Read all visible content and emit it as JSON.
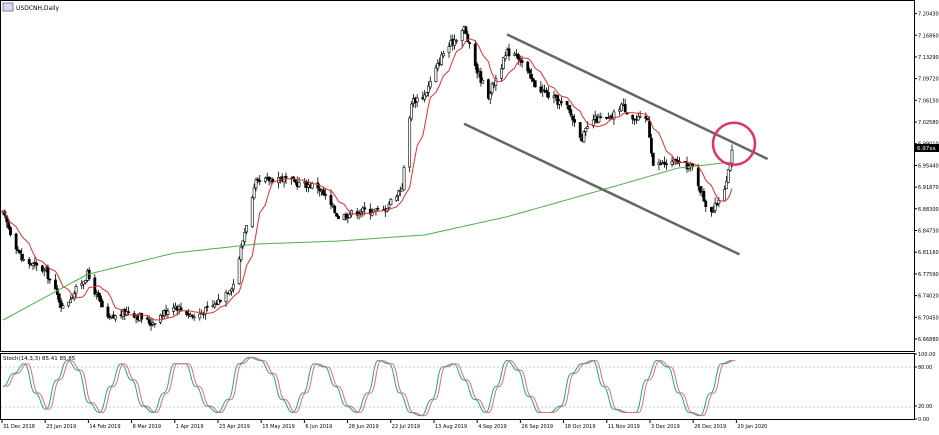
{
  "header": {
    "symbol_label": "USDCNH,Daily"
  },
  "price_axis": {
    "ticks": [
      "7.20430",
      "7.16860",
      "7.13290",
      "7.09720",
      "7.06150",
      "7.02580",
      "6.99010",
      "6.95440",
      "6.91870",
      "6.88300",
      "6.84730",
      "6.81160",
      "6.77590",
      "6.74020",
      "6.70450",
      "6.66880"
    ],
    "current_price_label": "6.97xx"
  },
  "stoch_panel": {
    "label": "Stoch(14,3,3) 85.41 85.85",
    "axis_ticks": [
      "100.00",
      "80.00",
      "20.00",
      "0.00"
    ]
  },
  "x_axis": {
    "labels": [
      "31 Dec 2018",
      "23 Jan 2019",
      "14 Feb 2019",
      "8 Mar 2019",
      "1 Apr 2019",
      "23 Apr 2019",
      "15 May 2019",
      "6 Jun 2019",
      "28 Jun 2019",
      "22 Jul 2019",
      "13 Aug 2019",
      "4 Sep 2019",
      "26 Sep 2019",
      "18 Oct 2019",
      "11 Nov 2019",
      "3 Dec 2019",
      "26 Dec 2019",
      "20 Jan 2020"
    ]
  },
  "colors": {
    "bull_candle": "#ffffff",
    "bear_candle": "#000000",
    "ma_short": "#e03030",
    "ma_long": "#4caf50",
    "stoch_main": "#26a0a0",
    "stoch_signal": "#e07070",
    "channel": "#666666",
    "highlight_circle": "#e0336a"
  },
  "chart_data": {
    "type": "candlestick",
    "symbol": "USDCNH",
    "timeframe": "Daily",
    "ylim": [
      6.649,
      7.225
    ],
    "x_range": [
      "2018-12-31",
      "2020-01-24"
    ],
    "price_path": [
      {
        "date": "2018-12-31",
        "close": 6.875
      },
      {
        "date": "2019-01-10",
        "close": 6.8
      },
      {
        "date": "2019-01-23",
        "close": 6.78
      },
      {
        "date": "2019-02-01",
        "close": 6.72
      },
      {
        "date": "2019-02-14",
        "close": 6.775
      },
      {
        "date": "2019-02-25",
        "close": 6.7
      },
      {
        "date": "2019-03-08",
        "close": 6.715
      },
      {
        "date": "2019-03-20",
        "close": 6.695
      },
      {
        "date": "2019-04-01",
        "close": 6.725
      },
      {
        "date": "2019-04-12",
        "close": 6.705
      },
      {
        "date": "2019-04-23",
        "close": 6.725
      },
      {
        "date": "2019-05-03",
        "close": 6.76
      },
      {
        "date": "2019-05-10",
        "close": 6.86
      },
      {
        "date": "2019-05-15",
        "close": 6.925
      },
      {
        "date": "2019-05-27",
        "close": 6.935
      },
      {
        "date": "2019-06-06",
        "close": 6.925
      },
      {
        "date": "2019-06-17",
        "close": 6.92
      },
      {
        "date": "2019-06-28",
        "close": 6.87
      },
      {
        "date": "2019-07-10",
        "close": 6.88
      },
      {
        "date": "2019-07-22",
        "close": 6.88
      },
      {
        "date": "2019-08-01",
        "close": 6.92
      },
      {
        "date": "2019-08-06",
        "close": 7.06
      },
      {
        "date": "2019-08-13",
        "close": 7.07
      },
      {
        "date": "2019-08-23",
        "close": 7.14
      },
      {
        "date": "2019-09-03",
        "close": 7.18
      },
      {
        "date": "2019-09-10",
        "close": 7.11
      },
      {
        "date": "2019-09-16",
        "close": 7.07
      },
      {
        "date": "2019-09-26",
        "close": 7.14
      },
      {
        "date": "2019-10-01",
        "close": 7.14
      },
      {
        "date": "2019-10-10",
        "close": 7.09
      },
      {
        "date": "2019-10-18",
        "close": 7.07
      },
      {
        "date": "2019-10-28",
        "close": 7.05
      },
      {
        "date": "2019-11-05",
        "close": 7.0
      },
      {
        "date": "2019-11-11",
        "close": 7.03
      },
      {
        "date": "2019-11-20",
        "close": 7.03
      },
      {
        "date": "2019-11-26",
        "close": 7.055
      },
      {
        "date": "2019-12-03",
        "close": 7.03
      },
      {
        "date": "2019-12-10",
        "close": 7.03
      },
      {
        "date": "2019-12-13",
        "close": 6.955
      },
      {
        "date": "2019-12-26",
        "close": 6.96
      },
      {
        "date": "2020-01-03",
        "close": 6.95
      },
      {
        "date": "2020-01-10",
        "close": 6.89
      },
      {
        "date": "2020-01-14",
        "close": 6.88
      },
      {
        "date": "2020-01-20",
        "close": 6.92
      },
      {
        "date": "2020-01-24",
        "close": 6.975
      }
    ],
    "ma_long_path": [
      {
        "date": "2018-12-31",
        "value": 6.7
      },
      {
        "date": "2019-02-14",
        "value": 6.775
      },
      {
        "date": "2019-04-01",
        "value": 6.81
      },
      {
        "date": "2019-05-15",
        "value": 6.825
      },
      {
        "date": "2019-06-28",
        "value": 6.83
      },
      {
        "date": "2019-08-13",
        "value": 6.84
      },
      {
        "date": "2019-09-26",
        "value": 6.87
      },
      {
        "date": "2019-11-11",
        "value": 6.91
      },
      {
        "date": "2019-12-26",
        "value": 6.95
      },
      {
        "date": "2020-01-24",
        "value": 6.96
      }
    ],
    "channel_upper": [
      {
        "date": "2019-09-26",
        "price": 7.17
      },
      {
        "date": "2020-02-12",
        "price": 6.965
      }
    ],
    "channel_lower": [
      {
        "date": "2019-09-03",
        "price": 7.023
      },
      {
        "date": "2020-01-28",
        "price": 6.808
      }
    ],
    "highlight": {
      "date": "2020-01-24",
      "price": 6.99
    },
    "stoch_main": [
      50,
      70,
      85,
      40,
      15,
      60,
      90,
      75,
      25,
      10,
      50,
      85,
      60,
      20,
      10,
      40,
      85,
      85,
      50,
      20,
      10,
      30,
      85,
      95,
      90,
      70,
      30,
      10,
      40,
      85,
      80,
      50,
      20,
      10,
      40,
      90,
      85,
      40,
      10,
      5,
      30,
      80,
      85,
      60,
      30,
      10,
      50,
      90,
      75,
      35,
      10,
      10,
      20,
      70,
      85,
      90,
      50,
      15,
      10,
      10,
      60,
      90,
      80,
      40,
      10,
      5,
      40,
      85,
      90
    ]
  }
}
